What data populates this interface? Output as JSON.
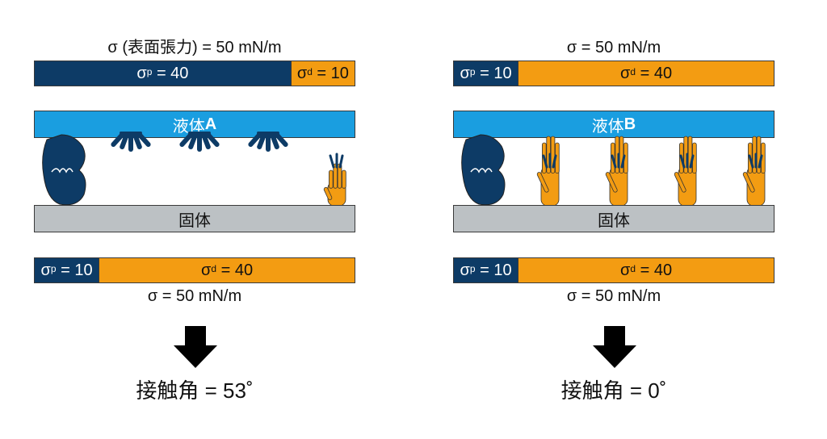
{
  "left": {
    "top_caption": "σ (表面張力) = 50 mN/m",
    "liquid_bar": {
      "polar": {
        "symbol": "σ",
        "sup": "p",
        "value": " = 40",
        "share": 0.8
      },
      "dispersive": {
        "symbol": "σ",
        "sup": "d",
        "value": " = 10",
        "share": 0.2
      }
    },
    "liquid_label": "液体",
    "liquid_id": "A",
    "hands": [
      "navy",
      "navy-open",
      "navy-open",
      "navy-open",
      "orange"
    ],
    "solid_label": "固体",
    "solid_bar": {
      "polar": {
        "symbol": "σ",
        "sup": "p",
        "value": " = 10",
        "share": 0.2
      },
      "dispersive": {
        "symbol": "σ",
        "sup": "d",
        "value": " = 40",
        "share": 0.8
      }
    },
    "bottom_caption": "σ = 50 mN/m",
    "result": "接触角 = 53˚"
  },
  "right": {
    "top_caption": "σ = 50 mN/m",
    "liquid_bar": {
      "polar": {
        "symbol": "σ",
        "sup": "p",
        "value": " = 10",
        "share": 0.2
      },
      "dispersive": {
        "symbol": "σ",
        "sup": "d",
        "value": " = 40",
        "share": 0.8
      }
    },
    "liquid_label": "液体",
    "liquid_id": "B",
    "hands": [
      "navy",
      "orange",
      "orange",
      "orange",
      "orange"
    ],
    "solid_label": "固体",
    "solid_bar": {
      "polar": {
        "symbol": "σ",
        "sup": "p",
        "value": " = 10",
        "share": 0.2
      },
      "dispersive": {
        "symbol": "σ",
        "sup": "d",
        "value": " = 40",
        "share": 0.8
      }
    },
    "bottom_caption": "σ = 50 mN/m",
    "result": "接触角 = 0˚"
  },
  "colors": {
    "polar": "#0d3b66",
    "dispersive": "#f39c12",
    "liquid": "#1a9ee0",
    "solid": "#bcc1c4"
  }
}
